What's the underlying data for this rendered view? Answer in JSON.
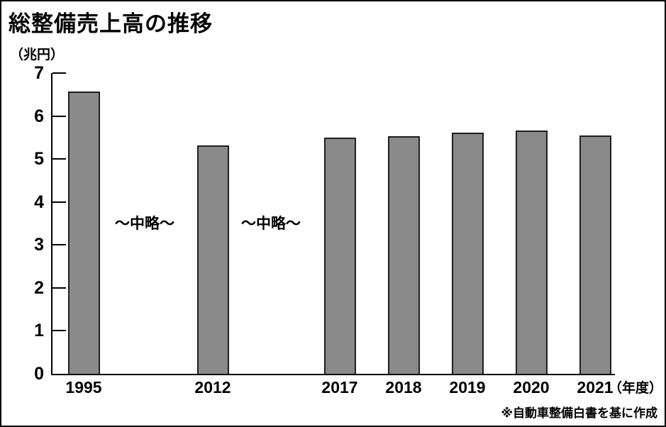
{
  "page": {
    "title": "総整備売上高の推移",
    "y_unit_label": "（兆円）",
    "x_axis_suffix": "（年度）",
    "source_note": "※自動車整備白書を基に作成"
  },
  "chart_data": {
    "type": "bar",
    "title": "総整備売上高の推移",
    "categories": [
      "1995",
      "2012",
      "2017",
      "2018",
      "2019",
      "2020",
      "2021"
    ],
    "values": [
      6.57,
      5.32,
      5.49,
      5.53,
      5.61,
      5.66,
      5.55
    ],
    "xlabel": "（年度）",
    "ylabel": "（兆円）",
    "ylim": [
      0,
      7
    ],
    "y_ticks": [
      0,
      1,
      2,
      3,
      4,
      5,
      6,
      7
    ],
    "grid": false,
    "legend_position": "none",
    "bar_color": "#8a8a8a",
    "bar_border_color": "#1f1f1f",
    "annotations": [
      {
        "text": "〜中略〜",
        "between": [
          "1995",
          "2012"
        ]
      },
      {
        "text": "〜中略〜",
        "between": [
          "2012",
          "2017"
        ]
      }
    ],
    "source_note": "※自動車整備白書を基に作成"
  }
}
